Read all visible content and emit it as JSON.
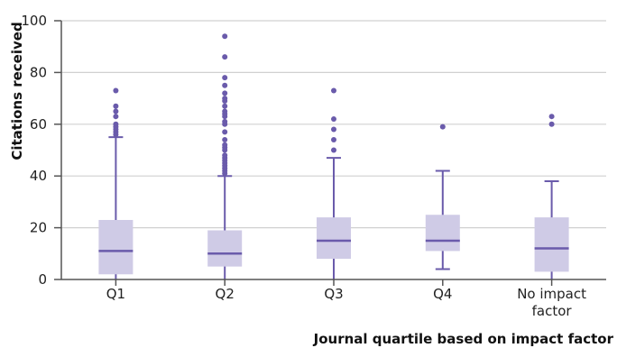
{
  "chart_data": {
    "type": "box",
    "title": "",
    "xlabel": "Journal quartile based on impact factor",
    "ylabel": "Citations received",
    "ylim": [
      0,
      100
    ],
    "yticks": [
      0,
      20,
      40,
      60,
      80,
      100
    ],
    "grid": "horizontal",
    "colors": {
      "box_fill": "#cfcbe6",
      "box_line": "#6a5bab",
      "outlier": "#6a5bab",
      "grid": "#d0d0d0",
      "axis": "#555555"
    },
    "categories": [
      "Q1",
      "Q2",
      "Q3",
      "Q4",
      "No impact factor"
    ],
    "category_labels": [
      [
        "Q1"
      ],
      [
        "Q2"
      ],
      [
        "Q3"
      ],
      [
        "Q4"
      ],
      [
        "No impact",
        "factor"
      ]
    ],
    "boxes": [
      {
        "category": "Q1",
        "whisker_low": 0,
        "q1": 2,
        "median": 11,
        "q3": 23,
        "whisker_high": 55,
        "outliers": [
          56,
          57,
          58,
          59,
          60,
          63,
          65,
          67,
          73
        ]
      },
      {
        "category": "Q2",
        "whisker_low": 0,
        "q1": 5,
        "median": 10,
        "q3": 19,
        "whisker_high": 40,
        "outliers": [
          41,
          42,
          43,
          44,
          45,
          46,
          47,
          48,
          50,
          51,
          52,
          54,
          57,
          60,
          61,
          63,
          64,
          65,
          67,
          69,
          70,
          72,
          75,
          78,
          86,
          94
        ]
      },
      {
        "category": "Q3",
        "whisker_low": 0,
        "q1": 8,
        "median": 15,
        "q3": 24,
        "whisker_high": 47,
        "outliers": [
          50,
          54,
          58,
          62,
          73
        ]
      },
      {
        "category": "Q4",
        "whisker_low": 4,
        "q1": 11,
        "median": 15,
        "q3": 25,
        "whisker_high": 42,
        "outliers": [
          59
        ]
      },
      {
        "category": "No impact factor",
        "whisker_low": 0,
        "q1": 3,
        "median": 12,
        "q3": 24,
        "whisker_high": 38,
        "outliers": [
          60,
          63
        ]
      }
    ]
  }
}
